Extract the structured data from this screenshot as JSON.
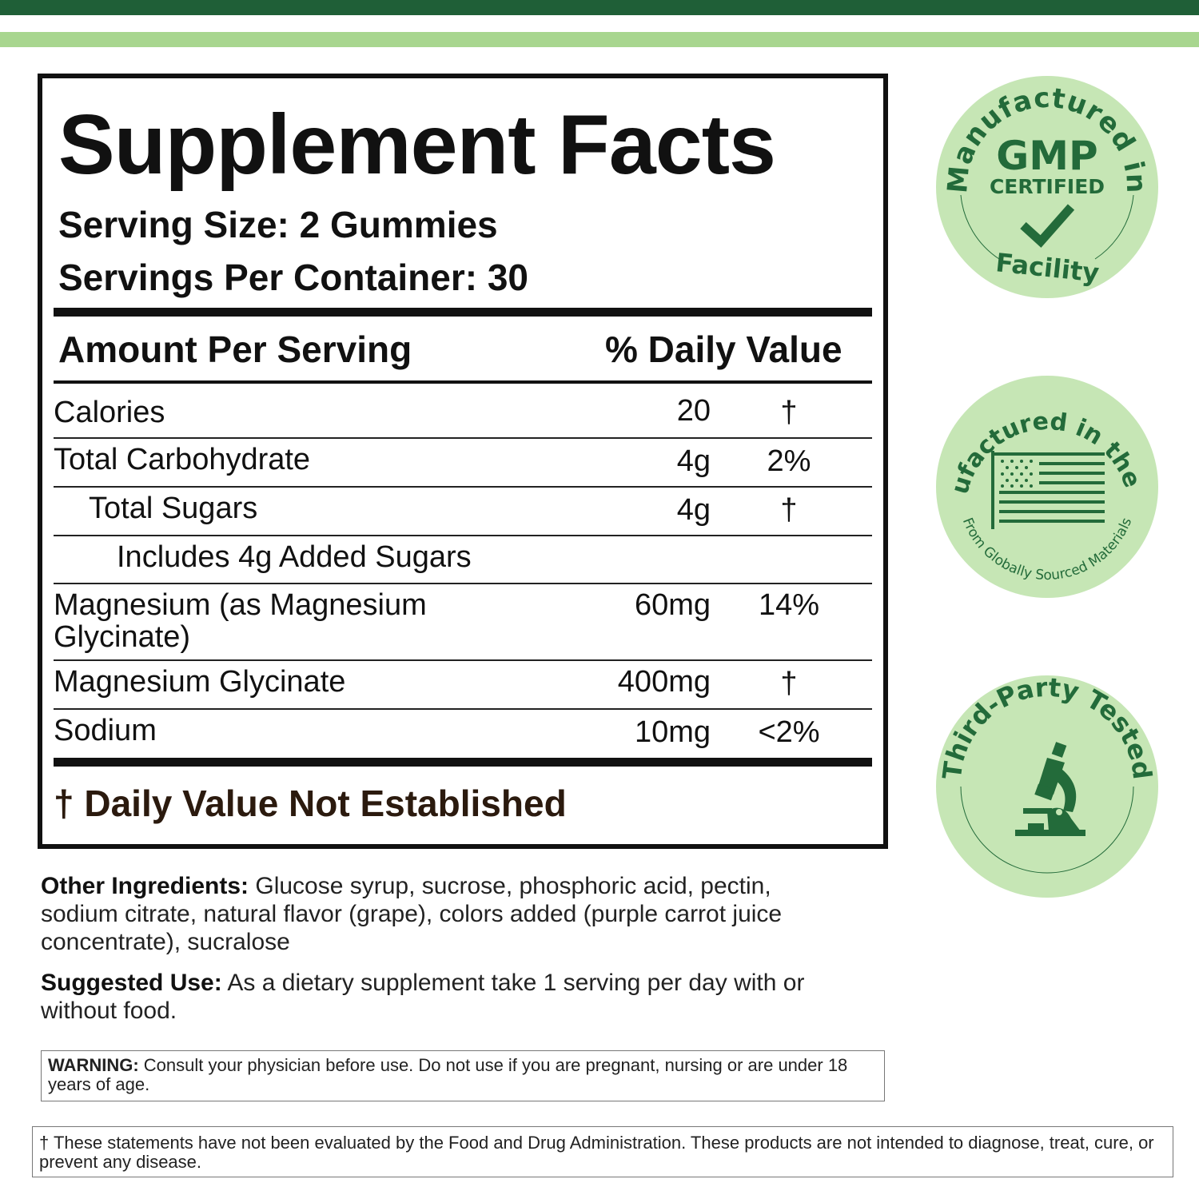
{
  "colors": {
    "dark_green": "#1f5f37",
    "light_green": "#a8d68f",
    "badge_fill": "#c6e6b5",
    "badge_ink": "#236b3a"
  },
  "facts": {
    "title": "Supplement Facts",
    "serving_size": "Serving Size: 2 Gummies",
    "servings_per_container": "Servings Per Container:  30",
    "header_amount": "Amount Per Serving",
    "header_dv": "% Daily Value",
    "rows": [
      {
        "name": "Calories",
        "amount": "20",
        "dv": "†"
      },
      {
        "name": "Total Carbohydrate",
        "amount": "4g",
        "dv": "2%"
      },
      {
        "name": "Total Sugars",
        "amount": "4g",
        "dv": "†"
      },
      {
        "name": "Includes 4g Added Sugars",
        "amount": "",
        "dv": ""
      },
      {
        "name": "Magnesium (as Magnesium",
        "name2": "Glycinate)",
        "amount": "60mg",
        "dv": "14%"
      },
      {
        "name": "Magnesium Glycinate",
        "amount": "400mg",
        "dv": "†"
      },
      {
        "name": "Sodium",
        "amount": "10mg",
        "dv": "<2%"
      }
    ],
    "footnote": "† Daily Value Not Established"
  },
  "other_ingredients": {
    "label": "Other Ingredients:",
    "text": " Glucose syrup, sucrose, phosphoric acid, pectin, sodium citrate, natural flavor (grape), colors added (purple carrot juice concentrate), sucralose"
  },
  "suggested_use": {
    "label": "Suggested Use:",
    "text": " As a dietary supplement take 1 serving per day with or without food."
  },
  "warning": {
    "label": "WARNING:",
    "text": " Consult your physician before use. Do not use if you are pregnant, nursing or are under 18 years of age."
  },
  "disclaimer": "† These statements have not been evaluated by the Food and Drug Administration. These products are not intended to diagnose, treat, cure, or prevent any disease.",
  "badges": {
    "gmp": {
      "top": "Manufactured in",
      "main": "GMP",
      "sub": "CERTIFIED",
      "bottom": "Facility",
      "icon": "checkmark-icon"
    },
    "usa": {
      "top": "Manufactured in the USA",
      "bottom": "From Globally Sourced Materials",
      "icon": "us-flag-icon"
    },
    "tested": {
      "top": "Third-Party Tested",
      "icon": "microscope-icon"
    }
  }
}
